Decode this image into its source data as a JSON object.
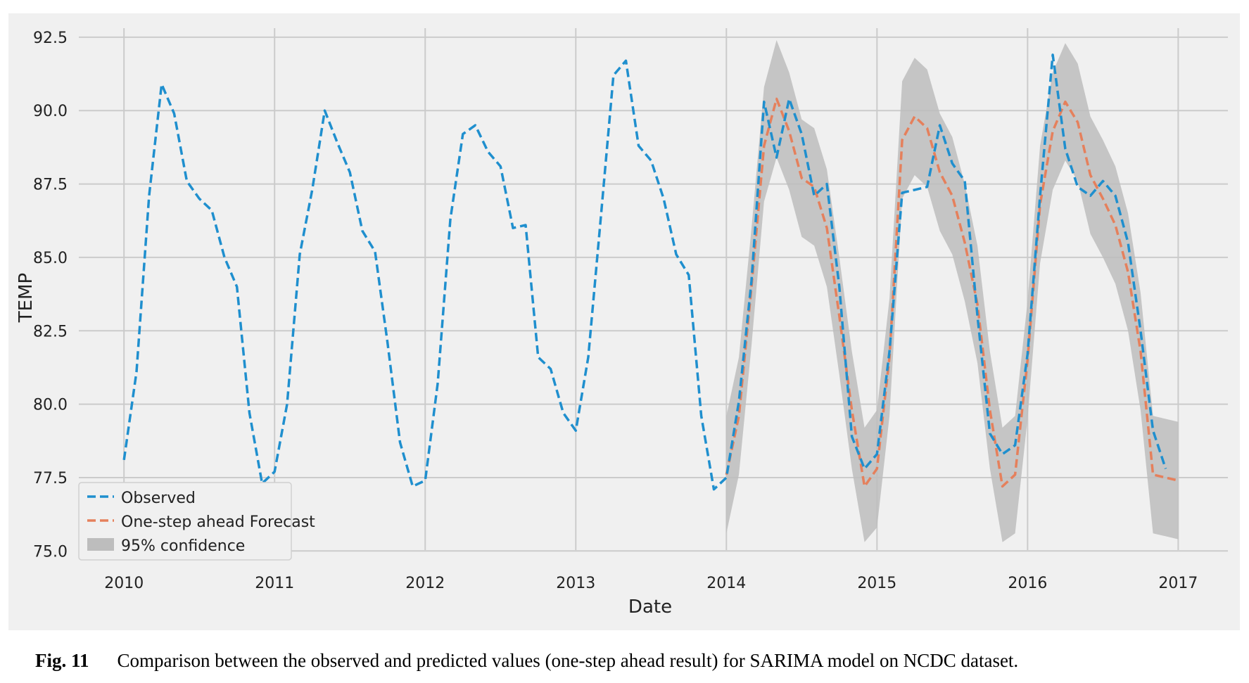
{
  "chart_data": {
    "type": "line",
    "xlabel": "Date",
    "ylabel": "TEMP",
    "xlim": [
      2009.7,
      2017.33
    ],
    "ylim": [
      74.6,
      93.0
    ],
    "xticks": [
      2010,
      2011,
      2012,
      2013,
      2014,
      2015,
      2016,
      2017
    ],
    "xtick_labels": [
      "2010",
      "2011",
      "2012",
      "2013",
      "2014",
      "2015",
      "2016",
      "2017"
    ],
    "yticks": [
      75.0,
      77.5,
      80.0,
      82.5,
      85.0,
      87.5,
      90.0,
      92.5
    ],
    "ytick_labels": [
      "75.0",
      "77.5",
      "80.0",
      "82.5",
      "85.0",
      "87.5",
      "90.0",
      "92.5"
    ],
    "grid": true,
    "legend_position": "lower-left",
    "series": [
      {
        "name": "Observed",
        "color": "#1f8fce",
        "style": "dashed",
        "x": [
          2010.0,
          2010.083,
          2010.167,
          2010.25,
          2010.333,
          2010.417,
          2010.5,
          2010.583,
          2010.667,
          2010.75,
          2010.833,
          2010.917,
          2011.0,
          2011.083,
          2011.167,
          2011.25,
          2011.333,
          2011.417,
          2011.5,
          2011.583,
          2011.667,
          2011.75,
          2011.833,
          2011.917,
          2012.0,
          2012.083,
          2012.167,
          2012.25,
          2012.333,
          2012.417,
          2012.5,
          2012.583,
          2012.667,
          2012.75,
          2012.833,
          2012.917,
          2013.0,
          2013.083,
          2013.167,
          2013.25,
          2013.333,
          2013.417,
          2013.5,
          2013.583,
          2013.667,
          2013.75,
          2013.833,
          2013.917,
          2014.0,
          2014.083,
          2014.167,
          2014.25,
          2014.333,
          2014.417,
          2014.5,
          2014.583,
          2014.667,
          2014.75,
          2014.833,
          2014.917,
          2015.0,
          2015.083,
          2015.167,
          2015.25,
          2015.333,
          2015.417,
          2015.5,
          2015.583,
          2015.667,
          2015.75,
          2015.833,
          2015.917,
          2016.0,
          2016.083,
          2016.167,
          2016.25,
          2016.333,
          2016.417,
          2016.5,
          2016.583,
          2016.667,
          2016.75,
          2016.833,
          2016.917
        ],
        "values": [
          78.1,
          81.1,
          87.1,
          90.9,
          89.9,
          87.6,
          87.0,
          86.6,
          85.0,
          84.0,
          79.7,
          77.3,
          77.7,
          80.0,
          85.1,
          87.3,
          90.0,
          88.9,
          87.9,
          85.9,
          85.2,
          82.1,
          78.7,
          77.2,
          77.4,
          80.7,
          86.3,
          89.2,
          89.5,
          88.6,
          88.1,
          86.0,
          86.1,
          81.6,
          81.2,
          79.7,
          79.1,
          81.6,
          86.4,
          91.2,
          91.7,
          88.8,
          88.3,
          87.0,
          85.1,
          84.4,
          79.6,
          77.1,
          77.5,
          80.1,
          84.2,
          90.3,
          88.4,
          90.4,
          89.2,
          87.1,
          87.5,
          84.0,
          78.9,
          77.8,
          78.3,
          81.8,
          87.2,
          87.3,
          87.4,
          89.5,
          88.2,
          87.6,
          83.0,
          79.0,
          78.3,
          78.6,
          81.7,
          87.1,
          91.9,
          88.7,
          87.4,
          87.1,
          87.6,
          87.1,
          85.5,
          82.5,
          79.1,
          77.8
        ]
      },
      {
        "name": "One-step ahead Forecast",
        "color": "#e5805c",
        "style": "dashed",
        "x": [
          2014.0,
          2014.083,
          2014.167,
          2014.25,
          2014.333,
          2014.417,
          2014.5,
          2014.583,
          2014.667,
          2014.75,
          2014.833,
          2014.917,
          2015.0,
          2015.083,
          2015.167,
          2015.25,
          2015.333,
          2015.417,
          2015.5,
          2015.583,
          2015.667,
          2015.75,
          2015.833,
          2015.917,
          2016.0,
          2016.083,
          2016.167,
          2016.25,
          2016.333,
          2016.417,
          2016.5,
          2016.583,
          2016.667,
          2016.75,
          2016.833,
          2016.917,
          2017.0
        ],
        "values": [
          77.6,
          79.6,
          84.0,
          88.8,
          90.4,
          89.3,
          87.7,
          87.4,
          86.0,
          83.0,
          79.8,
          77.2,
          77.8,
          81.6,
          89.0,
          89.8,
          89.4,
          87.9,
          87.1,
          85.5,
          83.4,
          79.8,
          77.2,
          77.6,
          81.5,
          86.8,
          89.3,
          90.3,
          89.6,
          87.8,
          87.0,
          86.1,
          84.5,
          81.8,
          77.6,
          77.5,
          77.4
        ],
        "ci_lower": [
          75.6,
          77.6,
          82.0,
          86.9,
          88.4,
          87.3,
          85.7,
          85.4,
          84.0,
          81.0,
          77.8,
          75.3,
          75.8,
          79.6,
          87.0,
          87.8,
          87.4,
          85.9,
          85.1,
          83.5,
          81.4,
          77.8,
          75.3,
          75.6,
          79.5,
          84.8,
          87.3,
          88.3,
          87.6,
          85.8,
          85.0,
          84.1,
          82.5,
          79.8,
          75.6,
          75.5,
          75.4
        ],
        "ci_upper": [
          79.6,
          81.6,
          86.0,
          90.8,
          92.4,
          91.3,
          89.7,
          89.4,
          88.0,
          85.0,
          81.8,
          79.2,
          79.8,
          83.6,
          91.0,
          91.8,
          91.4,
          89.9,
          89.1,
          87.5,
          85.4,
          81.8,
          79.2,
          79.6,
          83.5,
          88.8,
          91.3,
          92.3,
          91.6,
          89.8,
          89.0,
          88.1,
          86.5,
          83.8,
          79.6,
          79.5,
          79.4
        ]
      }
    ],
    "legend": [
      {
        "label": "Observed",
        "kind": "dashed-line",
        "color": "#1f8fce"
      },
      {
        "label": "One-step ahead Forecast",
        "kind": "dashed-line",
        "color": "#e5805c"
      },
      {
        "label": "95% confidence",
        "kind": "patch",
        "color": "#bdbdbd"
      }
    ],
    "colors": {
      "figure_background": "#f0f0f0",
      "plot_background": "#f0f0f0",
      "grid": "#cbcbcb",
      "confidence": "#bdbdbd"
    }
  },
  "caption": {
    "label": "Fig. 11",
    "text": "Comparison between the observed and predicted values (one-step ahead result) for SARIMA model on NCDC dataset."
  }
}
